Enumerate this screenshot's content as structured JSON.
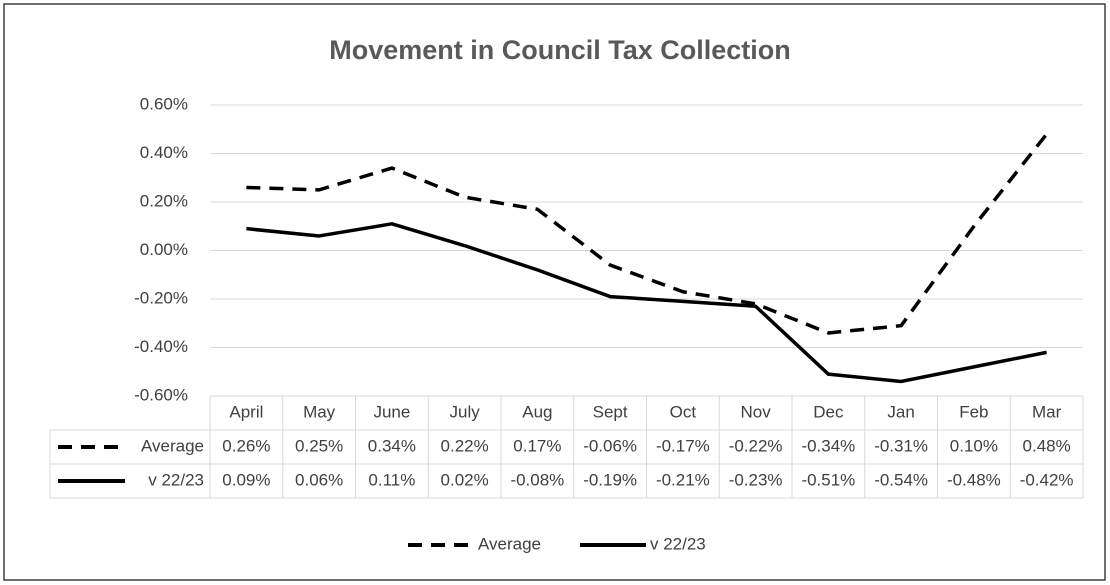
{
  "chart_data": {
    "type": "line",
    "title": "Movement in Council Tax Collection",
    "categories": [
      "April",
      "May",
      "June",
      "July",
      "Aug",
      "Sept",
      "Oct",
      "Nov",
      "Dec",
      "Jan",
      "Feb",
      "Mar"
    ],
    "series": [
      {
        "name": "Average",
        "color": "#000000",
        "line_style": "dashed",
        "values": [
          0.26,
          0.25,
          0.34,
          0.22,
          0.17,
          -0.06,
          -0.17,
          -0.22,
          -0.34,
          -0.31,
          0.1,
          0.48
        ],
        "value_labels": [
          "0.26%",
          "0.25%",
          "0.34%",
          "0.22%",
          "0.17%",
          "-0.06%",
          "-0.17%",
          "-0.22%",
          "-0.34%",
          "-0.31%",
          "0.10%",
          "0.48%"
        ]
      },
      {
        "name": "v 22/23",
        "color": "#000000",
        "line_style": "solid",
        "values": [
          0.09,
          0.06,
          0.11,
          0.02,
          -0.08,
          -0.19,
          -0.21,
          -0.23,
          -0.51,
          -0.54,
          -0.48,
          -0.42
        ],
        "value_labels": [
          "0.09%",
          "0.06%",
          "0.11%",
          "0.02%",
          "-0.08%",
          "-0.19%",
          "-0.21%",
          "-0.23%",
          "-0.51%",
          "-0.54%",
          "-0.48%",
          "-0.42%"
        ]
      }
    ],
    "ylim": [
      -0.6,
      0.6
    ],
    "yticks": [
      {
        "value": -0.6,
        "label": "-0.60%"
      },
      {
        "value": -0.4,
        "label": "-0.40%"
      },
      {
        "value": -0.2,
        "label": "-0.20%"
      },
      {
        "value": 0,
        "label": "0.00%"
      },
      {
        "value": 0.2,
        "label": "0.20%"
      },
      {
        "value": 0.4,
        "label": "0.40%"
      },
      {
        "value": 0.6,
        "label": "0.60%"
      }
    ],
    "grid": true,
    "legend": "bottom"
  }
}
